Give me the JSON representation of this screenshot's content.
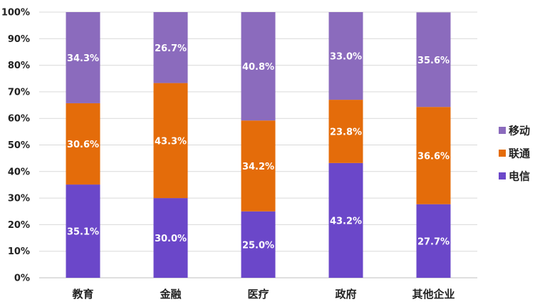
{
  "chart_data": {
    "type": "bar",
    "stacked": "percent",
    "title": "",
    "xlabel": "",
    "ylabel": "",
    "categories": [
      "教育",
      "金融",
      "医疗",
      "政府",
      "其他企业"
    ],
    "ylim": [
      0,
      100
    ],
    "yticks": [
      "0%",
      "10%",
      "20%",
      "30%",
      "40%",
      "50%",
      "60%",
      "70%",
      "80%",
      "90%",
      "100%"
    ],
    "grid": true,
    "legend_position": "right",
    "series": [
      {
        "name": "电信",
        "color": "#6b47c9",
        "values": [
          35.1,
          30.0,
          25.0,
          43.2,
          27.7
        ],
        "labels": [
          "35.1%",
          "30.0%",
          "25.0%",
          "43.2%",
          "27.7%"
        ]
      },
      {
        "name": "联通",
        "color": "#e46c0a",
        "values": [
          30.6,
          43.3,
          34.2,
          23.8,
          36.6
        ],
        "labels": [
          "30.6%",
          "43.3%",
          "34.2%",
          "23.8%",
          "36.6%"
        ]
      },
      {
        "name": "移动",
        "color": "#8b6bbd",
        "values": [
          34.3,
          26.7,
          40.8,
          33.0,
          35.6
        ],
        "labels": [
          "34.3%",
          "26.7%",
          "40.8%",
          "33.0%",
          "35.6%"
        ]
      }
    ],
    "legend_order": [
      "移动",
      "联通",
      "电信"
    ]
  }
}
